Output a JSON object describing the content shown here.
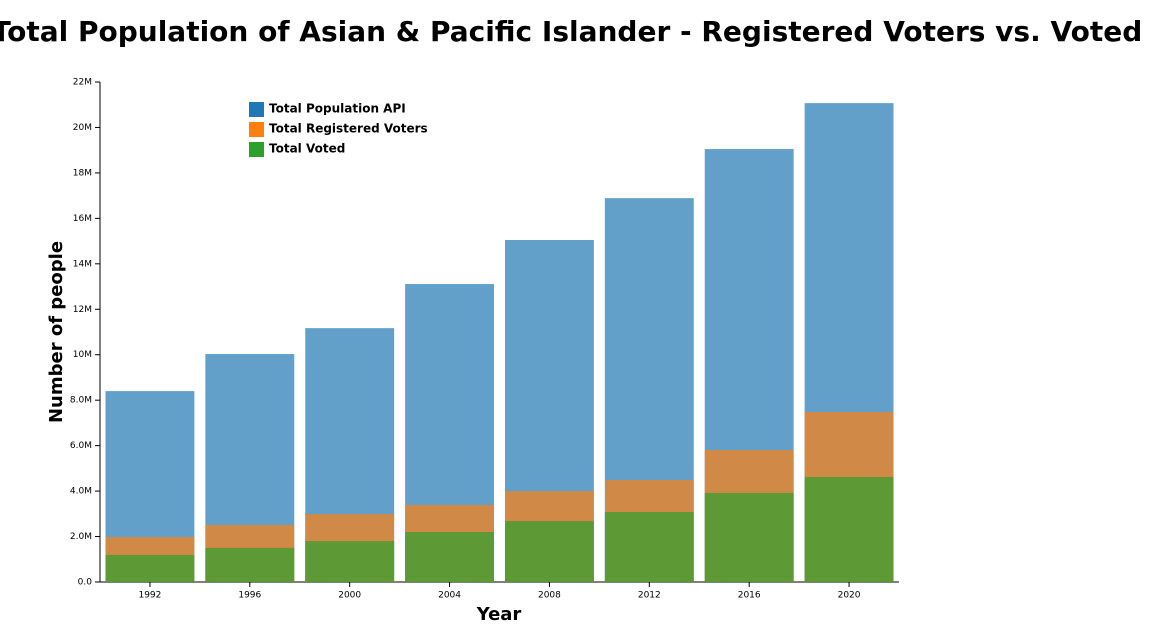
{
  "chart_data": {
    "type": "bar",
    "barmode": "overlay",
    "opacity": 0.7,
    "title": "Total Population of Asian & Pacific Islander - Registered Voters vs. Voted",
    "x_label": "Year",
    "y_label": "Number of people",
    "categories": [
      "1992",
      "1996",
      "2000",
      "2004",
      "2008",
      "2012",
      "2016",
      "2020"
    ],
    "series": [
      {
        "name": "Total Population API",
        "color": "#1f77b4",
        "values": [
          8400000,
          10030000,
          11170000,
          13110000,
          15050000,
          16890000,
          19050000,
          21070000
        ]
      },
      {
        "name": "Total Registered Voters",
        "color": "#ff7f0e",
        "values": [
          1980000,
          2510000,
          2990000,
          3390000,
          4000000,
          4490000,
          5810000,
          7480000
        ]
      },
      {
        "name": "Total Voted",
        "color": "#2ca02c",
        "values": [
          1190000,
          1500000,
          1800000,
          2200000,
          2680000,
          3080000,
          3920000,
          4620000
        ]
      }
    ],
    "ylim": [
      0,
      22000000
    ],
    "yticks": [
      {
        "value": 0,
        "label": "0.0"
      },
      {
        "value": 2000000,
        "label": "2.0M"
      },
      {
        "value": 4000000,
        "label": "4.0M"
      },
      {
        "value": 6000000,
        "label": "6.0M"
      },
      {
        "value": 8000000,
        "label": "8.0M"
      },
      {
        "value": 10000000,
        "label": "10M"
      },
      {
        "value": 12000000,
        "label": "12M"
      },
      {
        "value": 14000000,
        "label": "14M"
      },
      {
        "value": 16000000,
        "label": "16M"
      },
      {
        "value": 18000000,
        "label": "18M"
      },
      {
        "value": 20000000,
        "label": "20M"
      },
      {
        "value": 22000000,
        "label": "22M"
      }
    ],
    "grid": false
  }
}
